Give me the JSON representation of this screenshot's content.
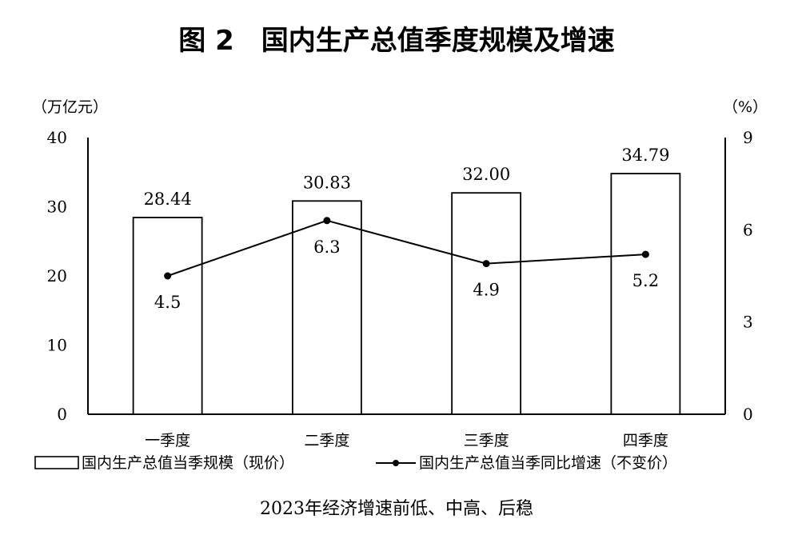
{
  "chart_data": {
    "type": "bar",
    "title": "图 2　国内生产总值季度规模及增速",
    "subtitle": "2023年经济增速前低、中高、后稳",
    "left_axis_unit": "（万亿元）",
    "right_axis_unit": "（%）",
    "categories": [
      "一季度",
      "二季度",
      "三季度",
      "四季度"
    ],
    "ylim_left": [
      0,
      40
    ],
    "yticks_left": [
      0,
      10,
      20,
      30,
      40
    ],
    "ylim_right": [
      0,
      9
    ],
    "yticks_right": [
      0,
      3,
      6,
      9
    ],
    "grid": false,
    "legend_position": "bottom",
    "series": [
      {
        "name": "国内生产总值当季规模（现价）",
        "type": "bar",
        "axis": "left",
        "values": [
          28.44,
          30.83,
          32.0,
          34.79
        ],
        "labels": [
          "28.44",
          "30.83",
          "32.00",
          "34.79"
        ]
      },
      {
        "name": "国内生产总值当季同比增速（不变价）",
        "type": "line",
        "axis": "right",
        "values": [
          4.5,
          6.3,
          4.9,
          5.2
        ],
        "labels": [
          "4.5",
          "6.3",
          "4.9",
          "5.2"
        ]
      }
    ]
  }
}
